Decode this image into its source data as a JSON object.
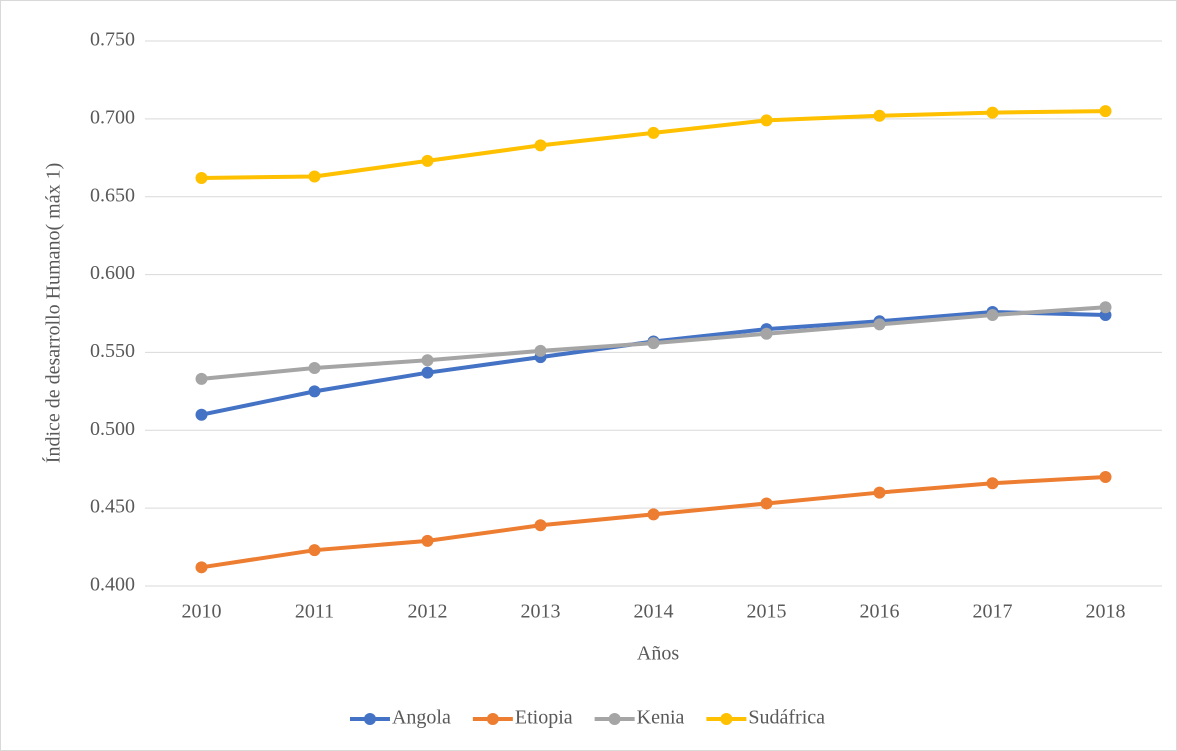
{
  "chart_data": {
    "type": "line",
    "ylabel": "Índice de desarrollo Humano( máx 1)",
    "xlabel": "Años",
    "categories": [
      "2010",
      "2011",
      "2012",
      "2013",
      "2014",
      "2015",
      "2016",
      "2017",
      "2018"
    ],
    "series": [
      {
        "name": "Angola",
        "color": "#4472c4",
        "values": [
          0.51,
          0.525,
          0.537,
          0.547,
          0.557,
          0.565,
          0.57,
          0.576,
          0.574
        ]
      },
      {
        "name": "Etiopia",
        "color": "#ed7d31",
        "values": [
          0.412,
          0.423,
          0.429,
          0.439,
          0.446,
          0.453,
          0.46,
          0.466,
          0.47
        ]
      },
      {
        "name": "Kenia",
        "color": "#a5a5a5",
        "values": [
          0.533,
          0.54,
          0.545,
          0.551,
          0.556,
          0.562,
          0.568,
          0.574,
          0.579
        ]
      },
      {
        "name": "Sudáfrica",
        "color": "#ffc000",
        "values": [
          0.662,
          0.663,
          0.673,
          0.683,
          0.691,
          0.699,
          0.702,
          0.704,
          0.705
        ]
      }
    ],
    "ylim": [
      0.4,
      0.75
    ],
    "yticks": [
      {
        "value": 0.4,
        "label": "0.400"
      },
      {
        "value": 0.45,
        "label": "0.450"
      },
      {
        "value": 0.5,
        "label": "0.500"
      },
      {
        "value": 0.55,
        "label": "0.550"
      },
      {
        "value": 0.6,
        "label": "0.600"
      },
      {
        "value": 0.65,
        "label": "0.650"
      },
      {
        "value": 0.7,
        "label": "0.700"
      },
      {
        "value": 0.75,
        "label": "0.750"
      }
    ],
    "grid": true,
    "legend": "bottom"
  }
}
